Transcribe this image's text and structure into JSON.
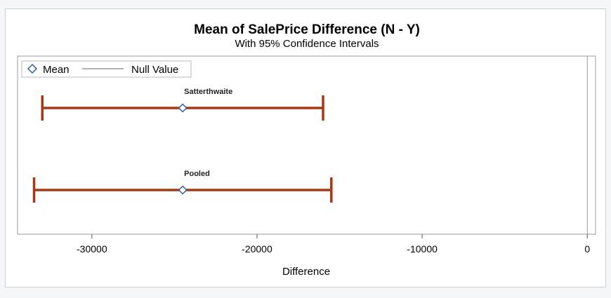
{
  "chart_data": {
    "type": "interval",
    "title": "Mean of SalePrice Difference (N - Y)",
    "subtitle": "With 95% Confidence Intervals",
    "xlabel": "Difference",
    "xlim": [
      -34500,
      500
    ],
    "xticks": [
      -30000,
      -20000,
      -10000,
      0
    ],
    "tick_labels": [
      "-30000",
      "-20000",
      "-10000",
      "0"
    ],
    "null_value": 0,
    "legend": {
      "placement": "top-left",
      "items": [
        {
          "label": "Mean",
          "marker": "diamond"
        },
        {
          "label": "Null Value",
          "marker": "line"
        }
      ]
    },
    "intervals": [
      {
        "name": "Satterthwaite",
        "mean": -24500,
        "lower": -33000,
        "upper": -16000
      },
      {
        "name": "Pooled",
        "mean": -24500,
        "lower": -33500,
        "upper": -15500
      }
    ],
    "colors": {
      "interval": "#a33a14",
      "marker": "#2f5aa8",
      "null_line": "#9a9a9a",
      "frame": "#9a9a9a"
    }
  }
}
